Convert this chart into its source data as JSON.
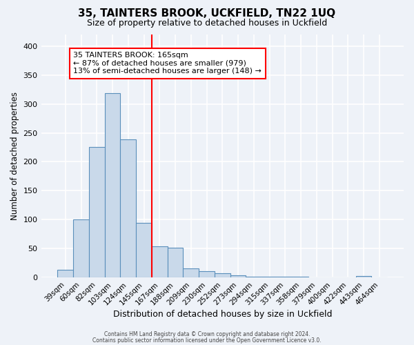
{
  "title": "35, TAINTERS BROOK, UCKFIELD, TN22 1UQ",
  "subtitle": "Size of property relative to detached houses in Uckfield",
  "xlabel": "Distribution of detached houses by size in Uckfield",
  "ylabel": "Number of detached properties",
  "bin_labels": [
    "39sqm",
    "60sqm",
    "82sqm",
    "103sqm",
    "124sqm",
    "145sqm",
    "167sqm",
    "188sqm",
    "209sqm",
    "230sqm",
    "252sqm",
    "273sqm",
    "294sqm",
    "315sqm",
    "337sqm",
    "358sqm",
    "379sqm",
    "400sqm",
    "422sqm",
    "443sqm",
    "464sqm"
  ],
  "bar_heights": [
    13,
    100,
    226,
    319,
    239,
    95,
    54,
    51,
    16,
    11,
    8,
    4,
    2,
    1,
    1,
    1,
    0,
    0,
    0,
    3,
    0
  ],
  "bar_color": "#c9d9ea",
  "bar_edge_color": "#5a8fbb",
  "vline_x_idx": 6,
  "vline_color": "red",
  "annotation_title": "35 TAINTERS BROOK: 165sqm",
  "annotation_line1": "← 87% of detached houses are smaller (979)",
  "annotation_line2": "13% of semi-detached houses are larger (148) →",
  "annotation_box_color": "white",
  "annotation_box_edge": "red",
  "ylim": [
    0,
    420
  ],
  "yticks": [
    0,
    50,
    100,
    150,
    200,
    250,
    300,
    350,
    400
  ],
  "footnote1": "Contains HM Land Registry data © Crown copyright and database right 2024.",
  "footnote2": "Contains public sector information licensed under the Open Government Licence v3.0.",
  "background_color": "#eef2f8",
  "grid_color": "white"
}
